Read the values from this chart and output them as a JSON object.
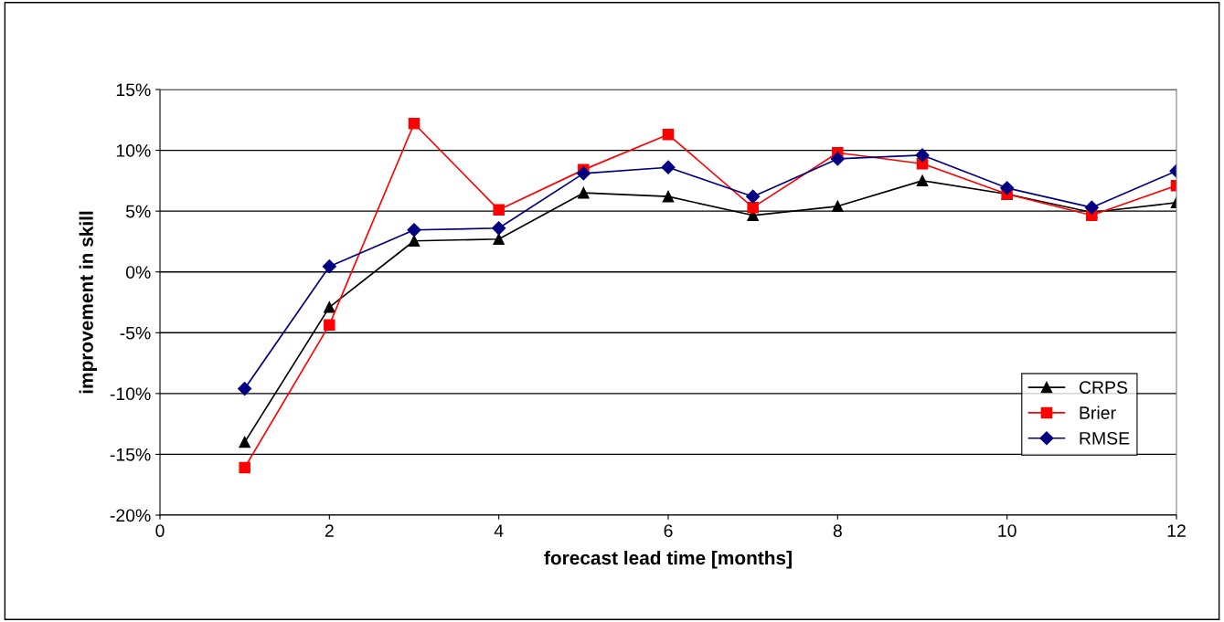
{
  "chart_data": {
    "type": "line",
    "xlabel": "forecast lead time [months]",
    "ylabel": "improvement in skill",
    "x": [
      1,
      2,
      3,
      4,
      5,
      6,
      7,
      8,
      9,
      10,
      11,
      12
    ],
    "series": [
      {
        "name": "CRPS",
        "color": "#000000",
        "marker": "triangle",
        "values": [
          -14.0,
          -2.9,
          2.55,
          2.7,
          6.5,
          6.2,
          4.65,
          5.4,
          7.5,
          6.4,
          4.9,
          5.7
        ]
      },
      {
        "name": "Brier",
        "color": "#ff0000",
        "marker": "square",
        "values": [
          -16.1,
          -4.35,
          12.2,
          5.1,
          8.4,
          11.3,
          5.3,
          9.8,
          8.9,
          6.4,
          4.65,
          7.1
        ]
      },
      {
        "name": "RMSE",
        "color": "#000080",
        "marker": "diamond",
        "values": [
          -9.6,
          0.45,
          3.45,
          3.6,
          8.1,
          8.6,
          6.2,
          9.3,
          9.6,
          6.9,
          5.3,
          8.3
        ]
      }
    ],
    "xlim": [
      0,
      12
    ],
    "xticks": [
      0,
      2,
      4,
      6,
      8,
      10,
      12
    ],
    "ylim": [
      -20,
      15
    ],
    "yticks": [
      {
        "value": -20,
        "label": "-20%"
      },
      {
        "value": -15,
        "label": "-15%"
      },
      {
        "value": -10,
        "label": "-10%"
      },
      {
        "value": -5,
        "label": "-5%"
      },
      {
        "value": 0,
        "label": "0%"
      },
      {
        "value": 5,
        "label": "5%"
      },
      {
        "value": 10,
        "label": "10%"
      },
      {
        "value": 15,
        "label": "15%"
      }
    ],
    "grid": "y",
    "legend": "bottom right",
    "line_style": "solid"
  }
}
